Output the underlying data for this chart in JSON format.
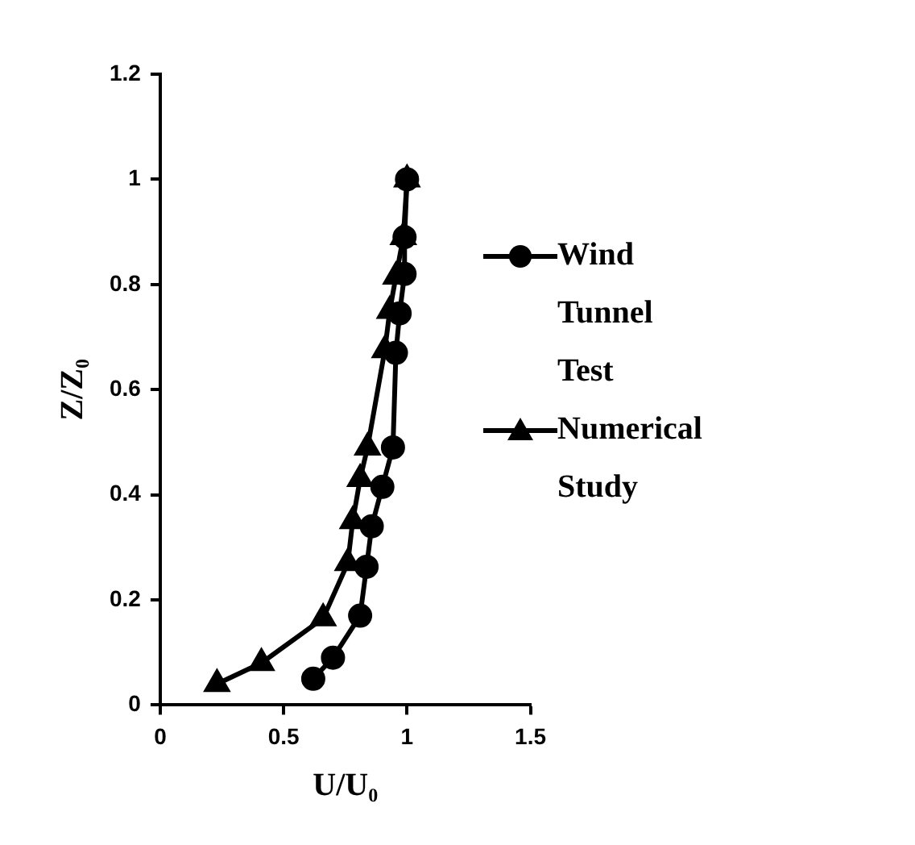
{
  "chart_data": {
    "type": "line",
    "xlabel": "U/U₀",
    "ylabel": "Z/Z₀",
    "xlim": [
      0,
      1.5
    ],
    "xticks": [
      0,
      0.5,
      1,
      1.5
    ],
    "ylim": [
      0,
      1.2
    ],
    "yticks": [
      0,
      0.2,
      0.4,
      0.6,
      0.8,
      1,
      1.2
    ],
    "grid": false,
    "legend": "right",
    "line_style": "solid",
    "series": [
      {
        "name": "Wind Tunnel Test",
        "color": "#000000",
        "marker": "circle",
        "x": [
          0.62,
          0.7,
          0.81,
          0.836,
          0.857,
          0.9,
          0.943,
          0.955,
          0.97,
          0.99,
          0.99,
          1.0
        ],
        "values": [
          0.05,
          0.09,
          0.17,
          0.263,
          0.34,
          0.415,
          0.49,
          0.67,
          0.745,
          0.82,
          0.89,
          1.0
        ]
      },
      {
        "name": "Numerical Study",
        "color": "#000000",
        "marker": "triangle",
        "x": [
          0.23,
          0.41,
          0.66,
          0.76,
          0.78,
          0.81,
          0.84,
          0.91,
          0.93,
          0.955,
          0.985,
          1.0
        ],
        "values": [
          0.04,
          0.08,
          0.165,
          0.27,
          0.35,
          0.43,
          0.49,
          0.675,
          0.75,
          0.815,
          0.89,
          1.0
        ]
      }
    ]
  }
}
